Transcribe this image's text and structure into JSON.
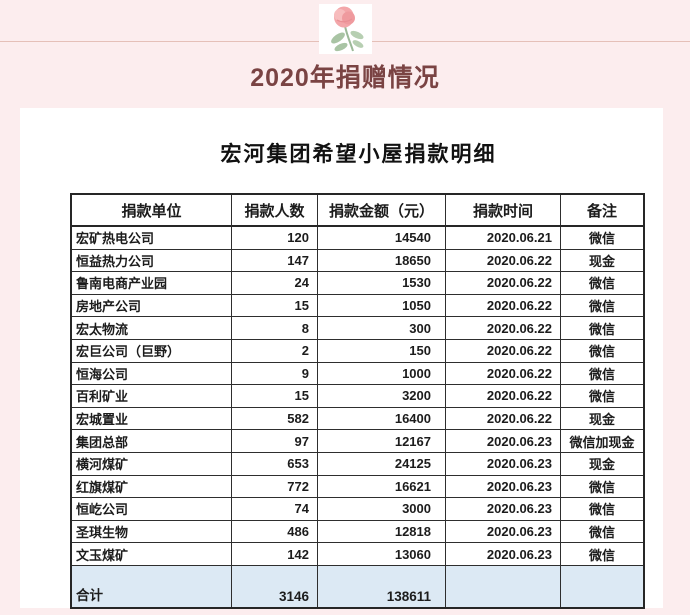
{
  "page": {
    "title": "2020年捐赠情况",
    "title_color": "#7a4343",
    "background_color": "#fcedee",
    "divider_color": "#e5c0b8",
    "flower_icon": "pink-rose-with-leaves"
  },
  "document": {
    "heading": "宏河集团希望小屋捐款明细"
  },
  "table": {
    "columns": [
      "捐款单位",
      "捐款人数",
      "捐款金额（元）",
      "捐款时间",
      "备注"
    ],
    "rows": [
      {
        "unit": "宏矿热电公司",
        "people": "120",
        "amount": "14540",
        "date": "2020.06.21",
        "note": "微信"
      },
      {
        "unit": "恒益热力公司",
        "people": "147",
        "amount": "18650",
        "date": "2020.06.22",
        "note": "现金"
      },
      {
        "unit": "鲁南电商产业园",
        "people": "24",
        "amount": "1530",
        "date": "2020.06.22",
        "note": "微信"
      },
      {
        "unit": "房地产公司",
        "people": "15",
        "amount": "1050",
        "date": "2020.06.22",
        "note": "微信"
      },
      {
        "unit": "宏太物流",
        "people": "8",
        "amount": "300",
        "date": "2020.06.22",
        "note": "微信"
      },
      {
        "unit": "宏巨公司（巨野）",
        "people": "2",
        "amount": "150",
        "date": "2020.06.22",
        "note": "微信"
      },
      {
        "unit": "恒海公司",
        "people": "9",
        "amount": "1000",
        "date": "2020.06.22",
        "note": "微信"
      },
      {
        "unit": "百利矿业",
        "people": "15",
        "amount": "3200",
        "date": "2020.06.22",
        "note": "微信"
      },
      {
        "unit": "宏城置业",
        "people": "582",
        "amount": "16400",
        "date": "2020.06.22",
        "note": "现金"
      },
      {
        "unit": "集团总部",
        "people": "97",
        "amount": "12167",
        "date": "2020.06.23",
        "note": "微信加现金"
      },
      {
        "unit": "横河煤矿",
        "people": "653",
        "amount": "24125",
        "date": "2020.06.23",
        "note": "现金"
      },
      {
        "unit": "红旗煤矿",
        "people": "772",
        "amount": "16621",
        "date": "2020.06.23",
        "note": "微信"
      },
      {
        "unit": "恒屹公司",
        "people": "74",
        "amount": "3000",
        "date": "2020.06.23",
        "note": "微信"
      },
      {
        "unit": "圣琪生物",
        "people": "486",
        "amount": "12818",
        "date": "2020.06.23",
        "note": "微信"
      },
      {
        "unit": "文玉煤矿",
        "people": "142",
        "amount": "13060",
        "date": "2020.06.23",
        "note": "微信"
      }
    ],
    "total": {
      "unit": "合计",
      "people": "3146",
      "amount": "138611",
      "date": "",
      "note": ""
    },
    "total_row_color": "#dce9f4"
  }
}
